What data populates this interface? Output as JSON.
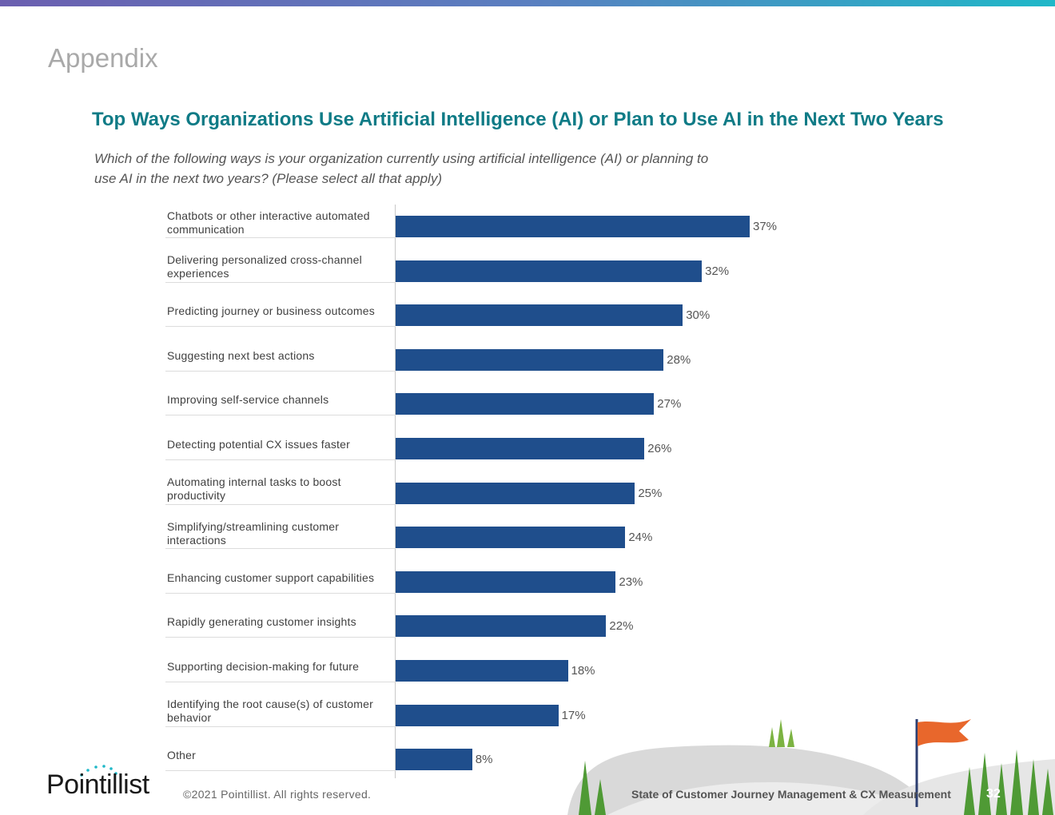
{
  "header": {
    "section_title": "Appendix"
  },
  "chart_data": {
    "type": "bar",
    "orientation": "horizontal",
    "title": "Top Ways Organizations Use Artificial Intelligence (AI) or Plan to Use AI in the Next Two Years",
    "subtitle": "Which of the following ways is your organization currently using artificial intelligence (AI) or planning to use AI in the next two years? (Please select all that apply)",
    "categories": [
      "Chatbots or other interactive automated communication",
      "Delivering personalized cross-channel experiences",
      "Predicting journey or business outcomes",
      "Suggesting next best actions",
      "Improving self-service channels",
      "Detecting potential CX issues faster",
      "Automating internal tasks to boost productivity",
      "Simplifying/streamlining customer interactions",
      "Enhancing customer support capabilities",
      "Rapidly generating customer insights",
      "Supporting decision-making for future",
      "Identifying the root cause(s) of customer behavior",
      "Other"
    ],
    "values": [
      37,
      32,
      30,
      28,
      27,
      26,
      25,
      24,
      23,
      22,
      18,
      17,
      8
    ],
    "value_labels": [
      "37%",
      "32%",
      "30%",
      "28%",
      "27%",
      "26%",
      "25%",
      "24%",
      "23%",
      "22%",
      "18%",
      "17%",
      "8%"
    ],
    "xlim": [
      0,
      37
    ],
    "grid": false,
    "bar_color": "#1f4e8c"
  },
  "footer": {
    "logo_text": "Pointillist",
    "copyright": "©2021 Pointillist. All rights reserved.",
    "report_title": "State of Customer Journey Management & CX Measurement",
    "page_number": "32"
  }
}
